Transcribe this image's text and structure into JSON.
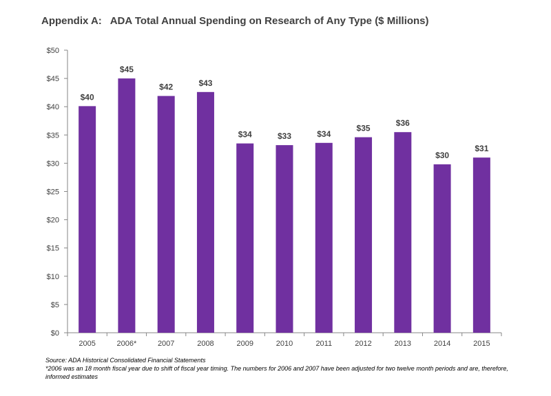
{
  "chart_data": {
    "type": "bar",
    "title": "Appendix A:   ADA Total Annual Spending on Research of Any Type ($ Millions)",
    "categories": [
      "2005",
      "2006*",
      "2007",
      "2008",
      "2009",
      "2010",
      "2011",
      "2012",
      "2013",
      "2014",
      "2015"
    ],
    "values": [
      40.1,
      45,
      41.9,
      42.6,
      33.5,
      33.2,
      33.6,
      34.6,
      35.5,
      29.8,
      31
    ],
    "data_labels": [
      "$40",
      "$45",
      "$42",
      "$43",
      "$34",
      "$33",
      "$34",
      "$35",
      "$36",
      "$30",
      "$31"
    ],
    "yticks": [
      "$0",
      "$5",
      "$10",
      "$15",
      "$20",
      "$25",
      "$30",
      "$35",
      "$40",
      "$45",
      "$50"
    ],
    "ytick_values": [
      0,
      5,
      10,
      15,
      20,
      25,
      30,
      35,
      40,
      45,
      50
    ],
    "ylim": [
      0,
      50
    ],
    "xlabel": "",
    "ylabel": "",
    "grid": false,
    "legend": "none",
    "bar_color": "#7030A0"
  },
  "footnotes": {
    "source": "Source: ADA Historical Consolidated Financial Statements",
    "note": "*2006  was an 18 month fiscal year due to shift of fiscal year timing.  The numbers for 2006 and 2007 have been adjusted for two twelve month periods and are, therefore, informed estimates"
  }
}
